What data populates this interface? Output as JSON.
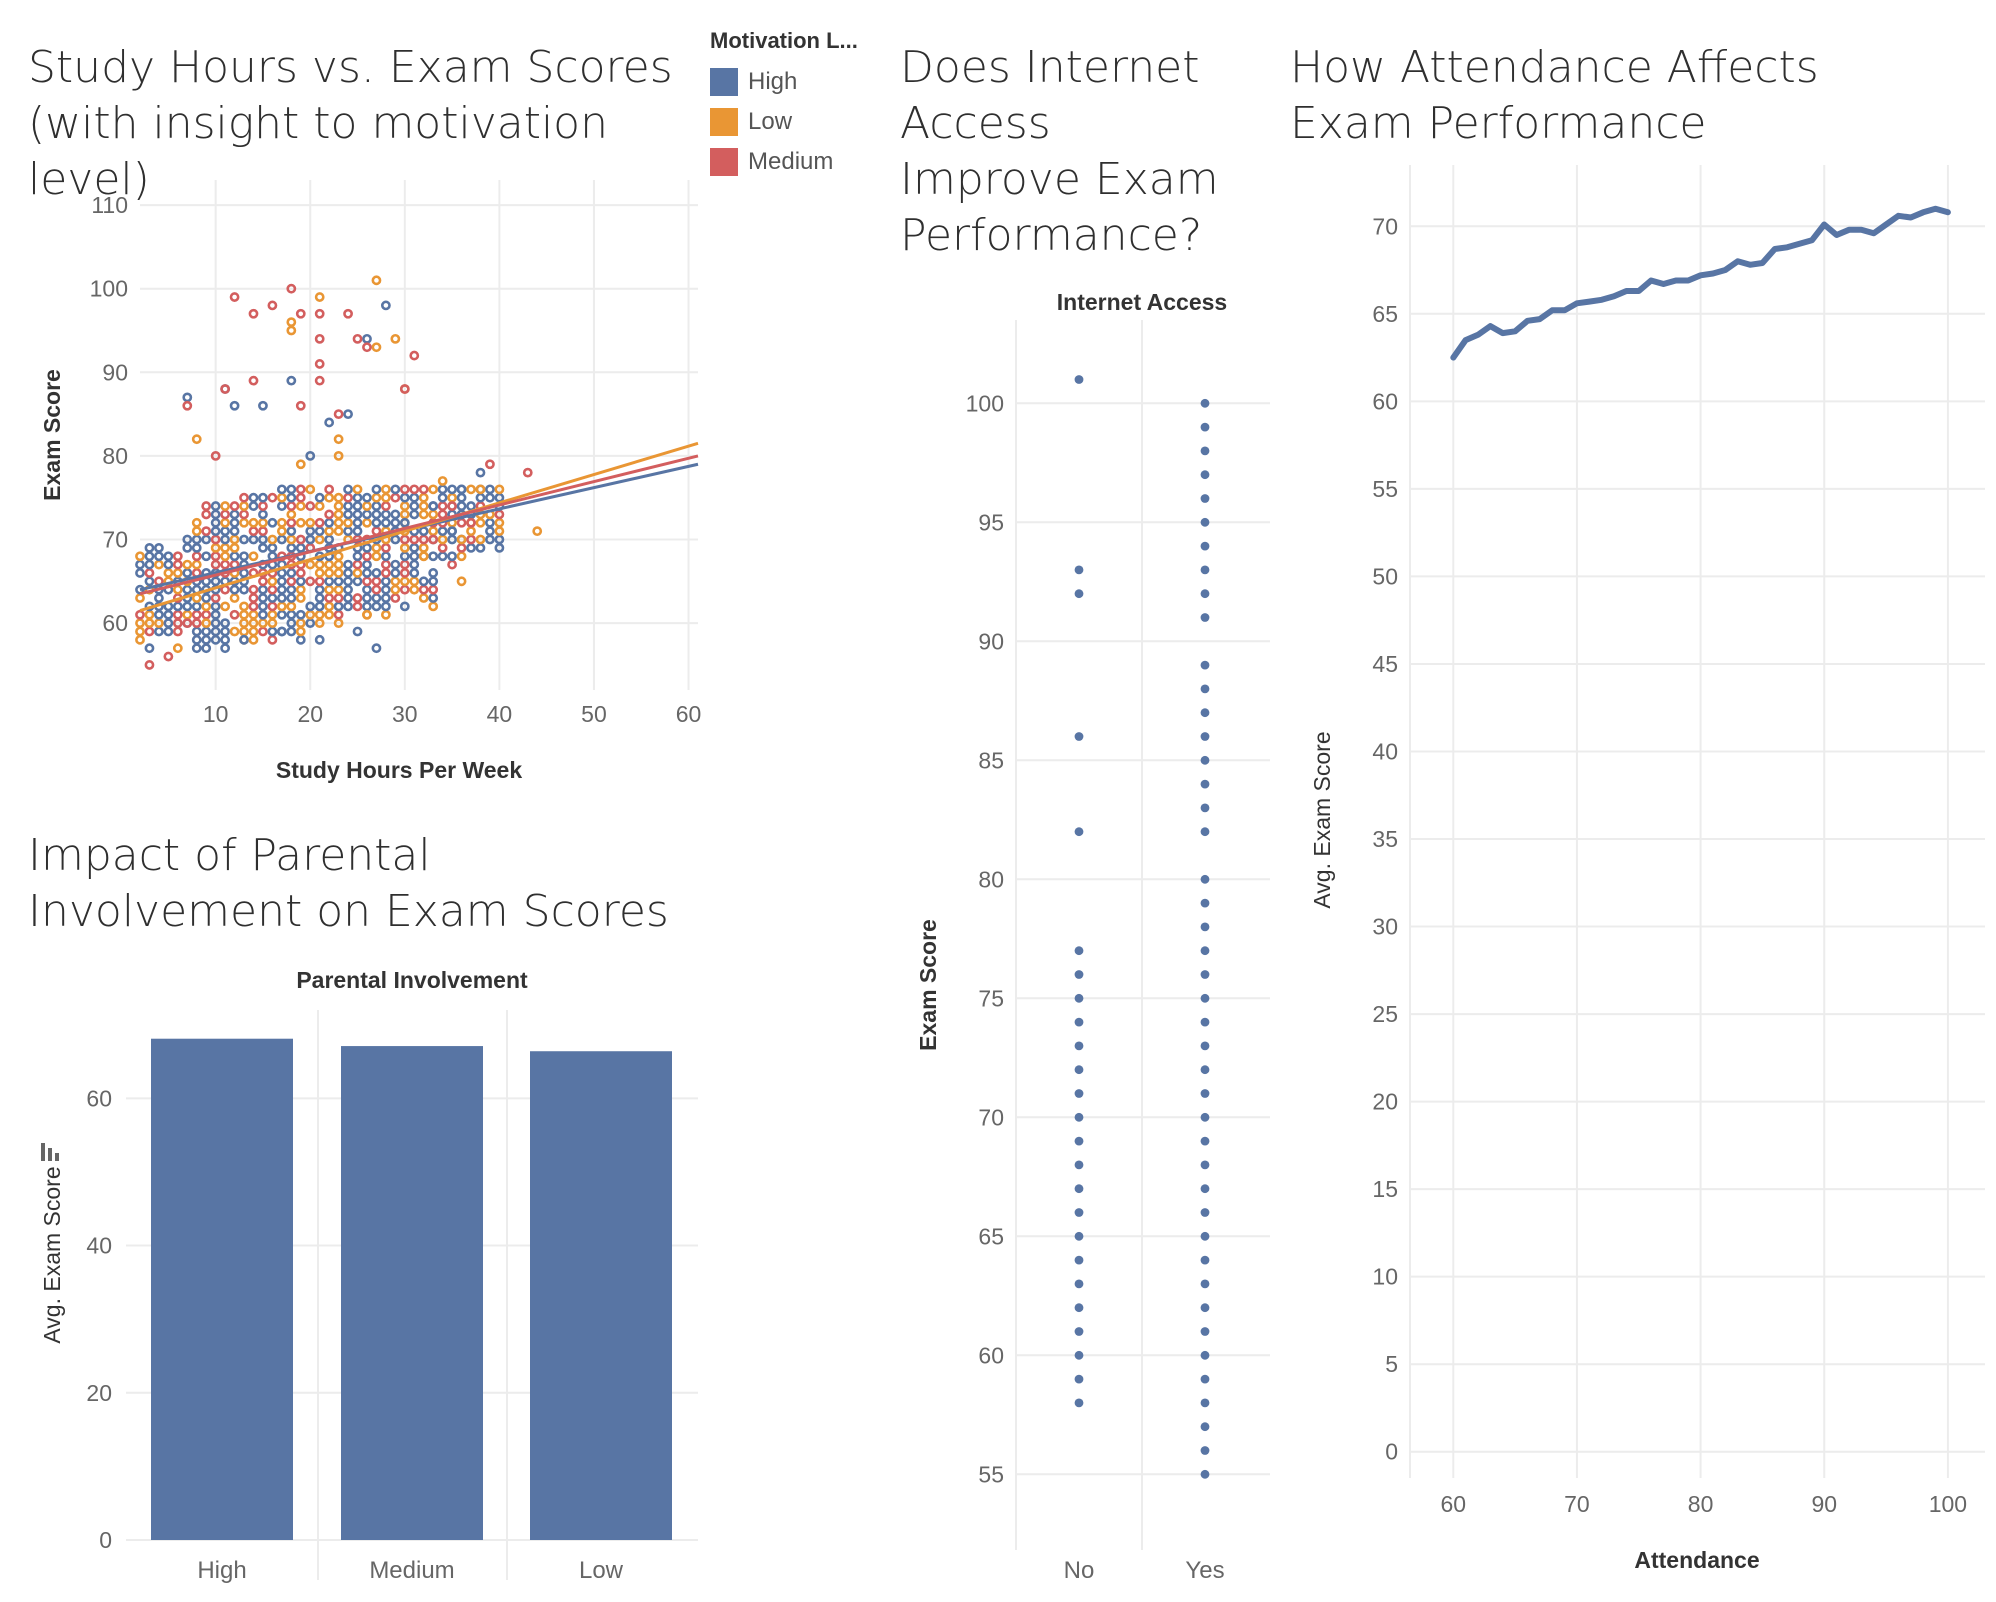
{
  "titles": {
    "scatter": "Study Hours vs. Exam Scores (with insight to motivation level)",
    "bars": "Impact of Parental Involvement on Exam Scores",
    "internet": "Does Internet Access Improve Exam Performance?",
    "attendance": "How Attendance Affects Exam Performance"
  },
  "legend": {
    "title": "Motivation L...",
    "items": [
      {
        "label": "High",
        "color": "#5875a4"
      },
      {
        "label": "Low",
        "color": "#e99634"
      },
      {
        "label": "Medium",
        "color": "#d35e5e"
      }
    ]
  },
  "icons": {
    "sort": "sort-descending-icon"
  },
  "chart_data": [
    {
      "type": "scatter",
      "title": "Study Hours vs. Exam Scores (with insight to motivation level)",
      "xlabel": "Study Hours Per Week",
      "ylabel": "Exam Score",
      "xlim": [
        2,
        61
      ],
      "ylim": [
        52,
        113
      ],
      "xticks": [
        10,
        20,
        30,
        40,
        50,
        60
      ],
      "yticks": [
        60,
        70,
        80,
        90,
        100,
        110
      ],
      "grid": true,
      "legend_position": "top-right",
      "dense_region": {
        "x_range": [
          2,
          40
        ],
        "y_range": [
          57,
          76
        ]
      },
      "series": [
        {
          "name": "High",
          "color": "#5875a4",
          "trend": [
            [
              2,
              64.0
            ],
            [
              61,
              79.0
            ]
          ],
          "points": [
            [
              7,
              87
            ],
            [
              11,
              88
            ],
            [
              18,
              89
            ],
            [
              22,
              84
            ],
            [
              24,
              85
            ],
            [
              26,
              94
            ],
            [
              28,
              98
            ],
            [
              15,
              86
            ],
            [
              20,
              80
            ],
            [
              12,
              86
            ],
            [
              3,
              69
            ],
            [
              5,
              59
            ],
            [
              8,
              57
            ],
            [
              13,
              58
            ],
            [
              17,
              59
            ],
            [
              21,
              58
            ],
            [
              25,
              59
            ],
            [
              27,
              57
            ],
            [
              30,
              72
            ],
            [
              33,
              74
            ],
            [
              36,
              76
            ],
            [
              38,
              78
            ],
            [
              36,
              73
            ],
            [
              39,
              75
            ],
            [
              35,
              71
            ]
          ]
        },
        {
          "name": "Low",
          "color": "#e99634",
          "trend": [
            [
              2,
              61.5
            ],
            [
              61,
              81.5
            ]
          ],
          "points": [
            [
              8,
              82
            ],
            [
              18,
              96
            ],
            [
              18,
              95
            ],
            [
              21,
              99
            ],
            [
              23,
              82
            ],
            [
              27,
              101
            ],
            [
              27,
              93
            ],
            [
              29,
              94
            ],
            [
              30,
              88
            ],
            [
              19,
              79
            ],
            [
              23,
              80
            ],
            [
              44,
              71
            ],
            [
              2,
              58
            ],
            [
              6,
              57
            ],
            [
              9,
              60
            ],
            [
              14,
              58
            ],
            [
              19,
              59
            ],
            [
              26,
              61
            ],
            [
              32,
              68
            ],
            [
              34,
              77
            ],
            [
              36,
              70
            ],
            [
              38,
              76
            ],
            [
              37,
              72
            ],
            [
              36,
              65
            ]
          ]
        },
        {
          "name": "Medium",
          "color": "#d35e5e",
          "trend": [
            [
              2,
              63.5
            ],
            [
              61,
              80.0
            ]
          ],
          "points": [
            [
              7,
              86
            ],
            [
              11,
              88
            ],
            [
              14,
              89
            ],
            [
              12,
              99
            ],
            [
              14,
              97
            ],
            [
              16,
              98
            ],
            [
              18,
              100
            ],
            [
              19,
              97
            ],
            [
              21,
              97
            ],
            [
              21,
              94
            ],
            [
              21,
              91
            ],
            [
              21,
              89
            ],
            [
              24,
              97
            ],
            [
              25,
              94
            ],
            [
              26,
              93
            ],
            [
              30,
              88
            ],
            [
              31,
              92
            ],
            [
              19,
              86
            ],
            [
              23,
              85
            ],
            [
              10,
              80
            ],
            [
              3,
              55
            ],
            [
              5,
              56
            ],
            [
              7,
              60
            ],
            [
              39,
              79
            ],
            [
              43,
              78
            ],
            [
              35,
              74
            ],
            [
              33,
              70
            ],
            [
              37,
              72
            ]
          ]
        }
      ]
    },
    {
      "type": "bar",
      "title": "Impact of Parental Involvement on Exam Scores",
      "xlabel": "Parental Involvement",
      "ylabel": "Avg. Exam Score",
      "categories": [
        "High",
        "Medium",
        "Low"
      ],
      "values": [
        68.1,
        67.1,
        66.4
      ],
      "ylim": [
        0,
        72
      ],
      "yticks": [
        0,
        20,
        40,
        60
      ],
      "color": "#5875a4"
    },
    {
      "type": "scatter",
      "title": "Does Internet Access Improve Exam Performance?",
      "xlabel": "Internet Access",
      "ylabel": "Exam Score",
      "categories": [
        "No",
        "Yes"
      ],
      "ylim": [
        53.5,
        103.5
      ],
      "yticks": [
        55,
        60,
        65,
        70,
        75,
        80,
        85,
        90,
        95,
        100
      ],
      "series": [
        {
          "name": "No",
          "values": [
            58,
            59,
            60,
            61,
            62,
            63,
            64,
            65,
            66,
            67,
            68,
            69,
            70,
            71,
            72,
            73,
            74,
            75,
            76,
            77,
            82,
            86,
            92,
            93,
            101
          ]
        },
        {
          "name": "Yes",
          "values": [
            55,
            56,
            57,
            58,
            59,
            60,
            61,
            62,
            63,
            64,
            65,
            66,
            67,
            68,
            69,
            70,
            71,
            72,
            73,
            74,
            75,
            76,
            77,
            78,
            79,
            80,
            82,
            83,
            84,
            85,
            86,
            87,
            88,
            89,
            91,
            92,
            93,
            94,
            95,
            96,
            97,
            98,
            99,
            100
          ]
        }
      ],
      "color": "#5875a4"
    },
    {
      "type": "line",
      "title": "How Attendance Affects Exam Performance",
      "xlabel": "Attendance",
      "ylabel": "Avg. Exam Score",
      "xlim": [
        56.5,
        103
      ],
      "ylim": [
        -1.5,
        73.5
      ],
      "xticks": [
        60,
        70,
        80,
        90,
        100
      ],
      "yticks": [
        0,
        5,
        10,
        15,
        20,
        25,
        30,
        35,
        40,
        45,
        50,
        55,
        60,
        65,
        70
      ],
      "x": [
        60,
        61,
        62,
        63,
        64,
        65,
        66,
        67,
        68,
        69,
        70,
        71,
        72,
        73,
        74,
        75,
        76,
        77,
        78,
        79,
        80,
        81,
        82,
        83,
        84,
        85,
        86,
        87,
        88,
        89,
        90,
        91,
        92,
        93,
        94,
        95,
        96,
        97,
        98,
        99,
        100
      ],
      "y": [
        62.5,
        63.5,
        63.8,
        64.3,
        63.9,
        64.0,
        64.6,
        64.7,
        65.2,
        65.2,
        65.6,
        65.7,
        65.8,
        66.0,
        66.3,
        66.3,
        66.9,
        66.7,
        66.9,
        66.9,
        67.2,
        67.3,
        67.5,
        68.0,
        67.8,
        67.9,
        68.7,
        68.8,
        69.0,
        69.2,
        70.1,
        69.5,
        69.8,
        69.8,
        69.6,
        70.1,
        70.6,
        70.5,
        70.8,
        71.0,
        70.8
      ],
      "color": "#5875a4"
    }
  ]
}
